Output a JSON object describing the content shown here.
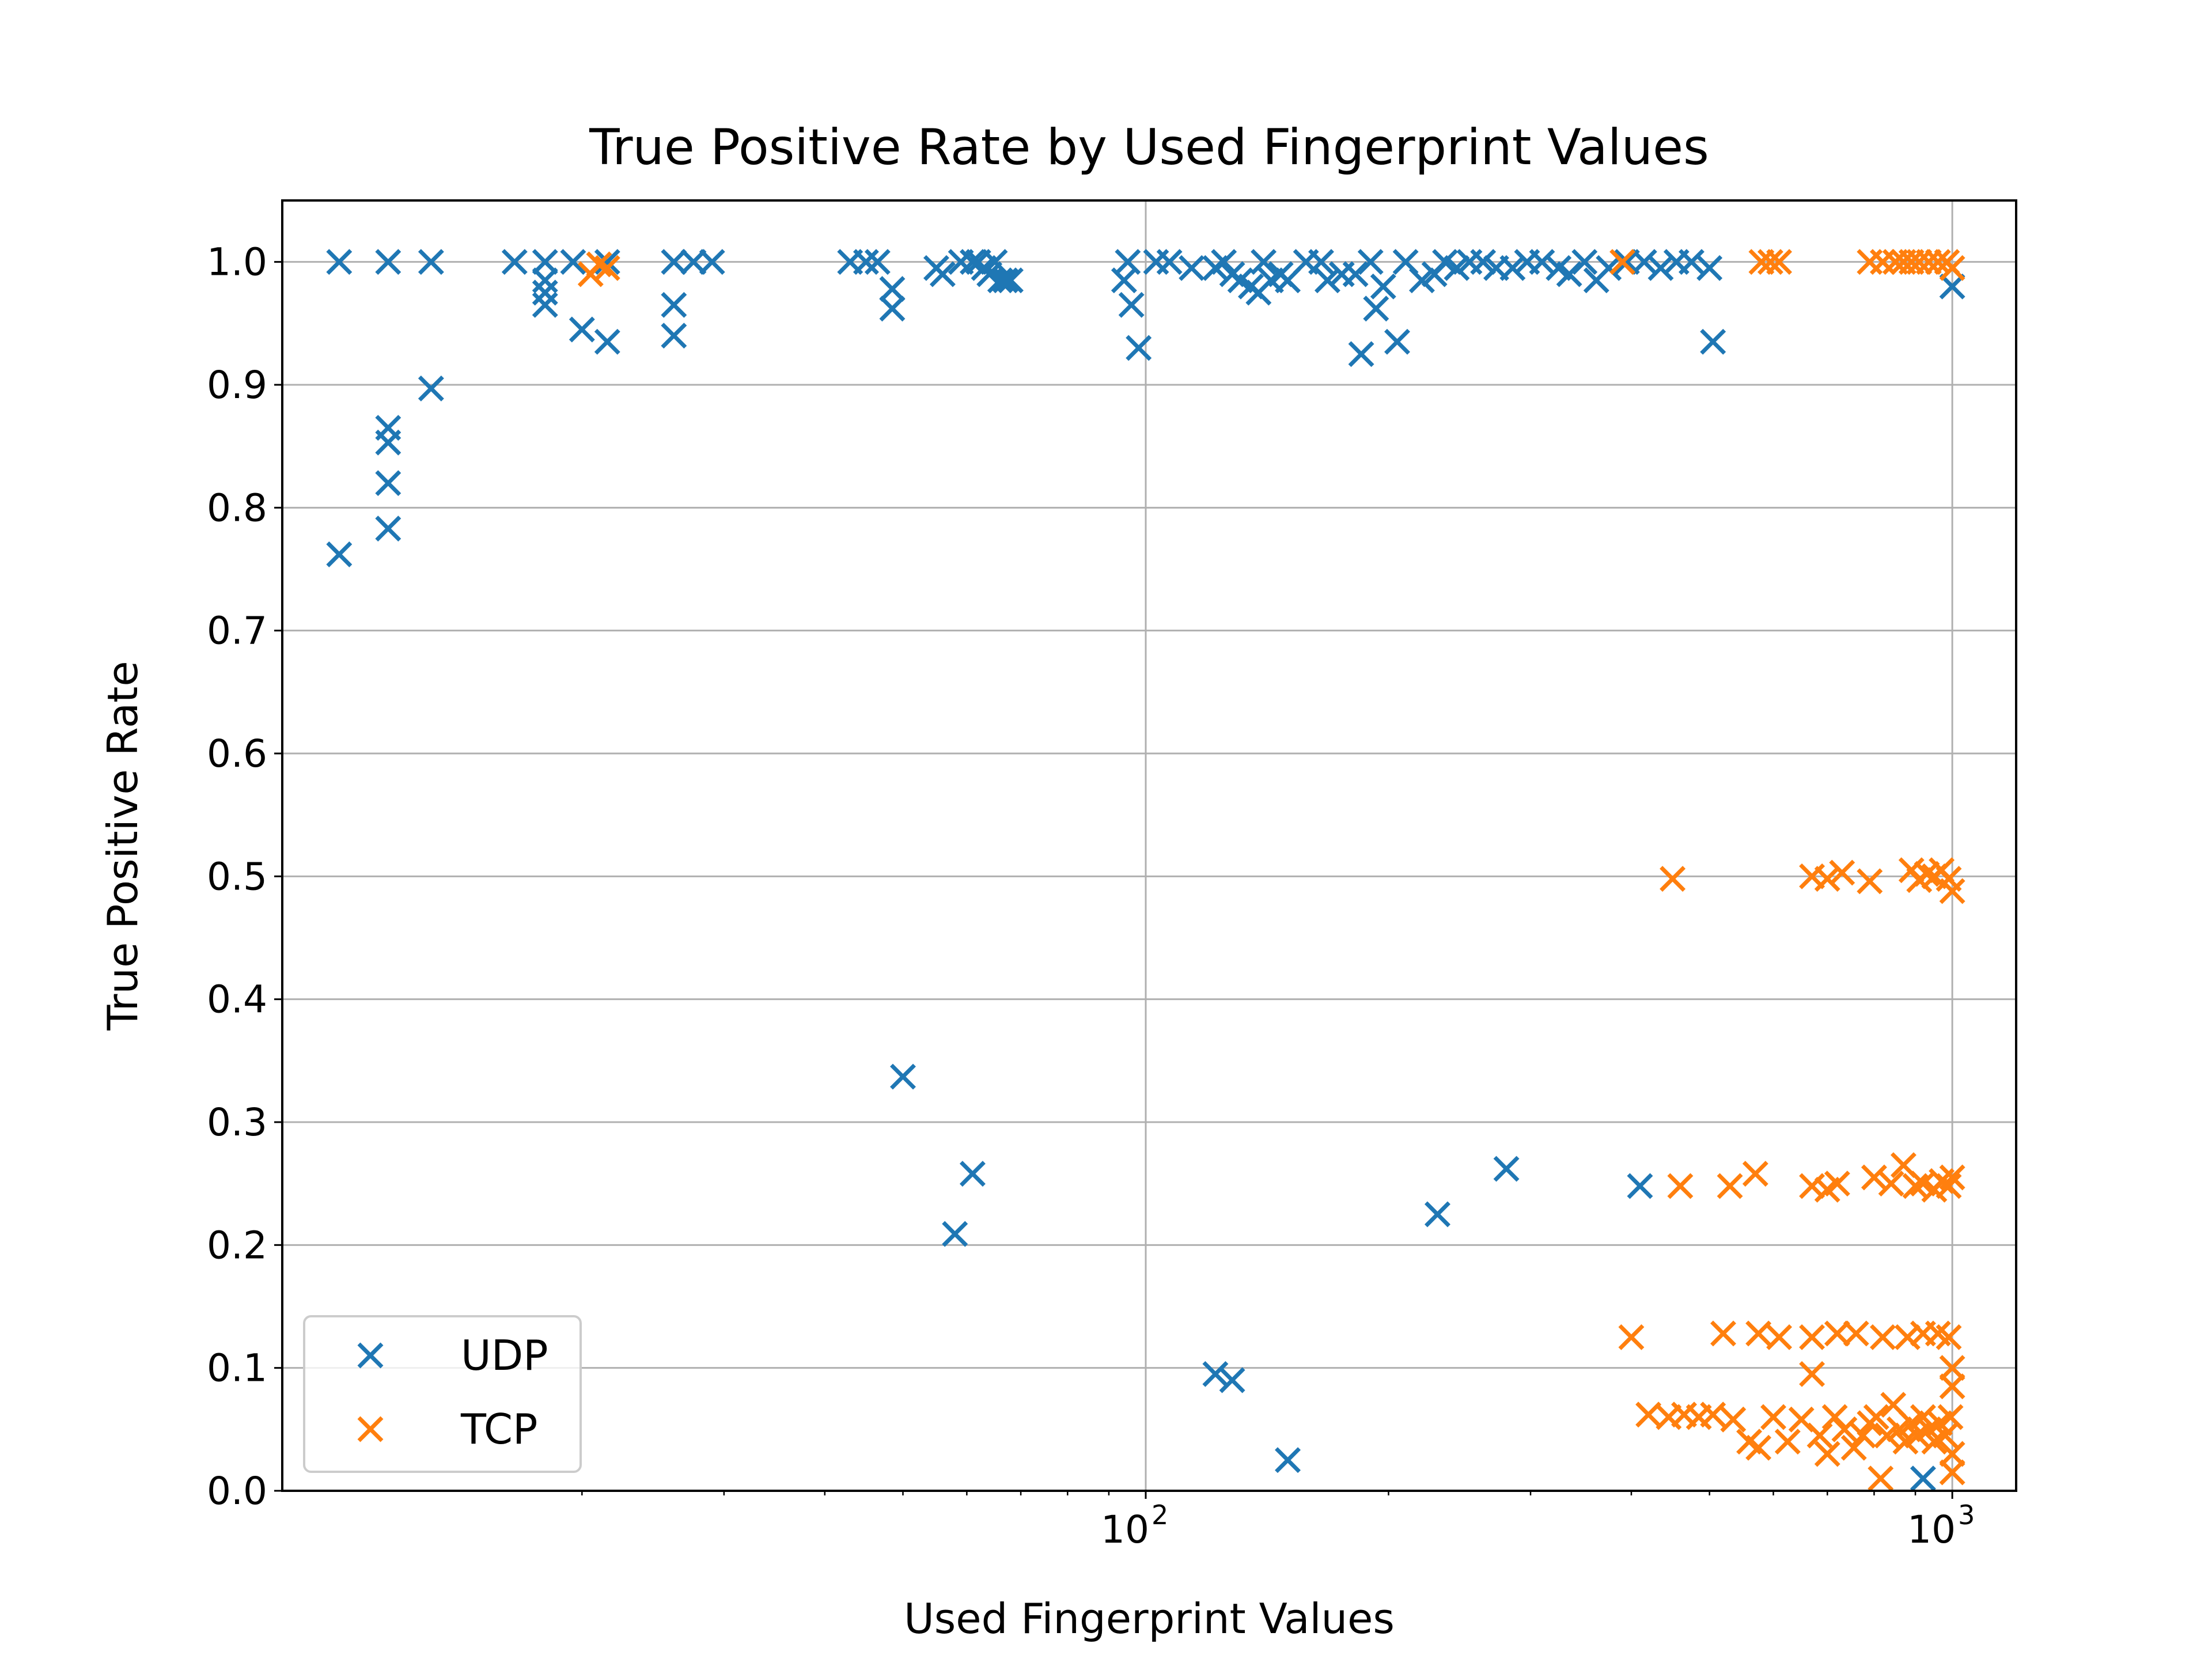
{
  "chart_data": {
    "type": "scatter",
    "title": "True Positive Rate by Used Fingerprint Values",
    "xlabel": "Used Fingerprint Values",
    "ylabel": "True Positive Rate",
    "x_scale": "log",
    "xlim": [
      8.5,
      1200
    ],
    "ylim": [
      0,
      1.05
    ],
    "grid": true,
    "legend_position": "lower-left",
    "y_ticks": [
      "0.0",
      "0.1",
      "0.2",
      "0.3",
      "0.4",
      "0.5",
      "0.6",
      "0.7",
      "0.8",
      "0.9",
      "1.0"
    ],
    "x_ticks": [
      {
        "base": "10",
        "exp": "2",
        "value": 100
      },
      {
        "base": "10",
        "exp": "3",
        "value": 1000
      }
    ],
    "colors": {
      "UDP": "#1f77b4",
      "TCP": "#ff7f0e"
    },
    "series": [
      {
        "name": "UDP",
        "color": "#1f77b4",
        "marker": "x",
        "points": [
          [
            10,
            1.0
          ],
          [
            10,
            0.762
          ],
          [
            11.5,
            1.0
          ],
          [
            11.5,
            0.865
          ],
          [
            11.5,
            0.853
          ],
          [
            11.5,
            0.82
          ],
          [
            11.5,
            0.783
          ],
          [
            13,
            1.0
          ],
          [
            13,
            0.897
          ],
          [
            16.5,
            1.0
          ],
          [
            18,
            1.0
          ],
          [
            18,
            0.985
          ],
          [
            18,
            0.965
          ],
          [
            18,
            0.975
          ],
          [
            19.5,
            1.0
          ],
          [
            20,
            0.945
          ],
          [
            21.5,
            0.935
          ],
          [
            21.5,
            1.0
          ],
          [
            26,
            1.0
          ],
          [
            26,
            0.965
          ],
          [
            26,
            0.94
          ],
          [
            27.5,
            1.0
          ],
          [
            29,
            1.0
          ],
          [
            43,
            1.0
          ],
          [
            45,
            1.0
          ],
          [
            46.5,
            1.0
          ],
          [
            48.5,
            0.962
          ],
          [
            48.5,
            0.978
          ],
          [
            55,
            0.995
          ],
          [
            56,
            0.99
          ],
          [
            59,
            1.0
          ],
          [
            61,
            1.0
          ],
          [
            62,
            1.0
          ],
          [
            63,
            0.995
          ],
          [
            64,
            0.99
          ],
          [
            65,
            1.0
          ],
          [
            66,
            0.985
          ],
          [
            67,
            0.985
          ],
          [
            68,
            0.985
          ],
          [
            94,
            0.985
          ],
          [
            95,
            1.0
          ],
          [
            96,
            0.965
          ],
          [
            98,
            0.93
          ],
          [
            103,
            1.0
          ],
          [
            107,
            1.0
          ],
          [
            114,
            0.995
          ],
          [
            122,
            0.995
          ],
          [
            125,
            1.0
          ],
          [
            128,
            0.99
          ],
          [
            131,
            0.985
          ],
          [
            135,
            0.98
          ],
          [
            138,
            0.975
          ],
          [
            140,
            1.0
          ],
          [
            143,
            0.985
          ],
          [
            147,
            0.99
          ],
          [
            150,
            0.985
          ],
          [
            158,
            1.0
          ],
          [
            165,
            1.0
          ],
          [
            168,
            0.985
          ],
          [
            175,
            0.99
          ],
          [
            182,
            0.99
          ],
          [
            185,
            0.925
          ],
          [
            190,
            1.0
          ],
          [
            193,
            0.962
          ],
          [
            197,
            0.98
          ],
          [
            205,
            0.935
          ],
          [
            210,
            1.0
          ],
          [
            220,
            0.985
          ],
          [
            228,
            0.99
          ],
          [
            235,
            1.0
          ],
          [
            243,
            0.995
          ],
          [
            252,
            1.0
          ],
          [
            262,
            1.0
          ],
          [
            272,
            0.995
          ],
          [
            285,
            0.995
          ],
          [
            297,
            1.0
          ],
          [
            310,
            1.0
          ],
          [
            325,
            0.995
          ],
          [
            335,
            0.99
          ],
          [
            350,
            1.0
          ],
          [
            362,
            0.985
          ],
          [
            375,
            0.995
          ],
          [
            395,
            1.0
          ],
          [
            415,
            1.0
          ],
          [
            435,
            0.995
          ],
          [
            455,
            1.0
          ],
          [
            475,
            1.0
          ],
          [
            500,
            0.995
          ],
          [
            505,
            0.935
          ],
          [
            920,
            0.01
          ],
          [
            1000,
            0.98
          ],
          [
            50,
            0.337
          ],
          [
            58,
            0.209
          ],
          [
            61,
            0.258
          ],
          [
            122,
            0.095
          ],
          [
            128,
            0.09
          ],
          [
            150,
            0.025
          ],
          [
            230,
            0.225
          ],
          [
            280,
            0.262
          ],
          [
            410,
            0.248
          ]
        ]
      },
      {
        "name": "TCP",
        "color": "#ff7f0e",
        "marker": "x",
        "points": [
          [
            20.5,
            0.99
          ],
          [
            21,
            0.998
          ],
          [
            21.5,
            0.995
          ],
          [
            390,
            1.0
          ],
          [
            580,
            1.0
          ],
          [
            595,
            1.0
          ],
          [
            610,
            1.0
          ],
          [
            790,
            1.0
          ],
          [
            820,
            1.0
          ],
          [
            850,
            1.0
          ],
          [
            870,
            1.0
          ],
          [
            890,
            1.0
          ],
          [
            910,
            1.0
          ],
          [
            935,
            1.0
          ],
          [
            960,
            1.0
          ],
          [
            985,
            1.0
          ],
          [
            1000,
            0.995
          ],
          [
            450,
            0.498
          ],
          [
            670,
            0.5
          ],
          [
            700,
            0.498
          ],
          [
            730,
            0.503
          ],
          [
            790,
            0.496
          ],
          [
            890,
            0.505
          ],
          [
            910,
            0.497
          ],
          [
            930,
            0.502
          ],
          [
            950,
            0.5
          ],
          [
            970,
            0.505
          ],
          [
            990,
            0.498
          ],
          [
            1000,
            0.488
          ],
          [
            460,
            0.248
          ],
          [
            530,
            0.248
          ],
          [
            570,
            0.258
          ],
          [
            670,
            0.248
          ],
          [
            700,
            0.245
          ],
          [
            720,
            0.25
          ],
          [
            800,
            0.255
          ],
          [
            840,
            0.25
          ],
          [
            870,
            0.265
          ],
          [
            900,
            0.248
          ],
          [
            920,
            0.25
          ],
          [
            950,
            0.245
          ],
          [
            970,
            0.252
          ],
          [
            990,
            0.248
          ],
          [
            1000,
            0.255
          ],
          [
            400,
            0.125
          ],
          [
            520,
            0.128
          ],
          [
            575,
            0.128
          ],
          [
            610,
            0.125
          ],
          [
            670,
            0.125
          ],
          [
            720,
            0.128
          ],
          [
            760,
            0.128
          ],
          [
            820,
            0.125
          ],
          [
            880,
            0.125
          ],
          [
            920,
            0.128
          ],
          [
            960,
            0.128
          ],
          [
            990,
            0.125
          ],
          [
            1000,
            0.1
          ],
          [
            1000,
            0.085
          ],
          [
            420,
            0.062
          ],
          [
            445,
            0.06
          ],
          [
            465,
            0.062
          ],
          [
            485,
            0.06
          ],
          [
            505,
            0.062
          ],
          [
            535,
            0.058
          ],
          [
            560,
            0.04
          ],
          [
            575,
            0.035
          ],
          [
            600,
            0.06
          ],
          [
            625,
            0.04
          ],
          [
            650,
            0.058
          ],
          [
            670,
            0.095
          ],
          [
            685,
            0.045
          ],
          [
            700,
            0.03
          ],
          [
            715,
            0.06
          ],
          [
            735,
            0.05
          ],
          [
            755,
            0.035
          ],
          [
            775,
            0.045
          ],
          [
            790,
            0.055
          ],
          [
            805,
            0.06
          ],
          [
            815,
            0.01
          ],
          [
            830,
            0.045
          ],
          [
            845,
            0.07
          ],
          [
            860,
            0.05
          ],
          [
            875,
            0.04
          ],
          [
            890,
            0.055
          ],
          [
            905,
            0.045
          ],
          [
            920,
            0.06
          ],
          [
            935,
            0.05
          ],
          [
            950,
            0.04
          ],
          [
            965,
            0.055
          ],
          [
            980,
            0.045
          ],
          [
            995,
            0.06
          ],
          [
            1000,
            0.03
          ],
          [
            1000,
            0.015
          ]
        ]
      }
    ]
  }
}
